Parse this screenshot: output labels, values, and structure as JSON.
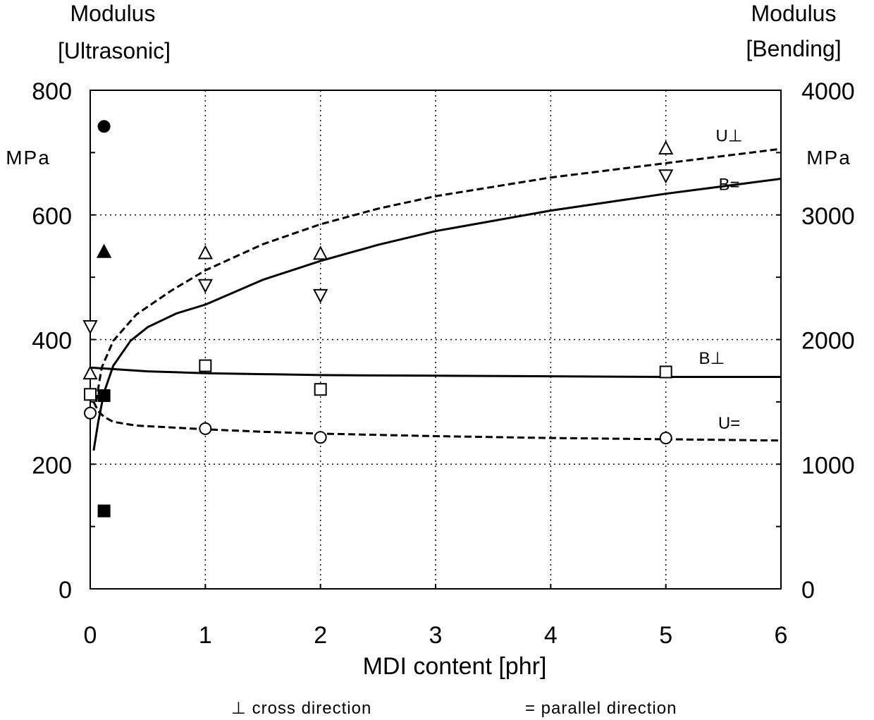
{
  "chart_data": {
    "type": "scatter",
    "xlabel": "MDI content [phr]",
    "xlim": [
      0,
      6
    ],
    "xticks": [
      "0",
      "1",
      "2",
      "3",
      "4",
      "5",
      "6"
    ],
    "left_axis": {
      "label_line1": "Modulus",
      "label_line2": "[Ultrasonic]",
      "unit": "MPa",
      "ylim": [
        0,
        800
      ],
      "ticks": [
        "0",
        "200",
        "400",
        "600",
        "800"
      ]
    },
    "right_axis": {
      "label_line1": "Modulus",
      "label_line2": "[Bending]",
      "unit": "MPa",
      "ylim": [
        0,
        4000
      ],
      "ticks": [
        "0",
        "1000",
        "2000",
        "3000",
        "4000"
      ]
    },
    "grid": true,
    "series": [
      {
        "name": "U⊥",
        "axis": "left",
        "marker": "triangle-up-open",
        "points": [
          [
            0,
            345
          ],
          [
            1,
            538
          ],
          [
            2,
            537
          ],
          [
            5,
            706
          ]
        ]
      },
      {
        "name": "U=",
        "axis": "left",
        "marker": "circle-open",
        "points": [
          [
            0,
            282
          ],
          [
            1,
            257
          ],
          [
            2,
            243
          ],
          [
            5,
            242
          ]
        ]
      },
      {
        "name": "B⊥",
        "axis": "right",
        "marker": "square-open",
        "points": [
          [
            0,
            1560
          ],
          [
            1,
            1790
          ],
          [
            2,
            1600
          ],
          [
            5,
            1740
          ]
        ]
      },
      {
        "name": "B=",
        "axis": "right",
        "marker": "triangle-down-open",
        "points": [
          [
            0,
            2110
          ],
          [
            1,
            2440
          ],
          [
            2,
            2360
          ],
          [
            5,
            3320
          ]
        ]
      },
      {
        "name": "",
        "axis": "left",
        "marker": "circle-filled",
        "points": [
          [
            0.12,
            742
          ]
        ]
      },
      {
        "name": "",
        "axis": "left",
        "marker": "triangle-up-filled",
        "points": [
          [
            0.12,
            540
          ]
        ]
      },
      {
        "name": "",
        "axis": "left",
        "marker": "square-filled",
        "points": [
          [
            0.12,
            310
          ],
          [
            0.12,
            125
          ]
        ]
      }
    ],
    "fits": [
      {
        "name": "U⊥",
        "axis": "left",
        "style": "dashed",
        "points": [
          [
            0.05,
            300
          ],
          [
            0.1,
            355
          ],
          [
            0.2,
            398
          ],
          [
            0.4,
            440
          ],
          [
            0.7,
            478
          ],
          [
            1,
            511
          ],
          [
            1.5,
            553
          ],
          [
            2,
            585
          ],
          [
            2.5,
            610
          ],
          [
            3,
            630
          ],
          [
            4,
            660
          ],
          [
            5,
            683
          ],
          [
            6,
            706
          ]
        ]
      },
      {
        "name": "B=",
        "axis": "left",
        "style": "solid",
        "points": [
          [
            0.03,
            222
          ],
          [
            0.07,
            268
          ],
          [
            0.12,
            315
          ],
          [
            0.2,
            358
          ],
          [
            0.35,
            398
          ],
          [
            0.5,
            420
          ],
          [
            0.75,
            442
          ],
          [
            1,
            456
          ],
          [
            1.5,
            496
          ],
          [
            2,
            526
          ],
          [
            2.5,
            552
          ],
          [
            3,
            574
          ],
          [
            4,
            607
          ],
          [
            5,
            634
          ],
          [
            6,
            658
          ]
        ]
      },
      {
        "name": "B⊥",
        "axis": "left",
        "style": "solid",
        "points": [
          [
            0,
            355
          ],
          [
            0.5,
            349
          ],
          [
            1,
            346
          ],
          [
            2,
            343
          ],
          [
            3,
            342
          ],
          [
            4,
            341
          ],
          [
            5,
            340
          ],
          [
            6,
            340
          ]
        ]
      },
      {
        "name": "U=",
        "axis": "left",
        "style": "dashed",
        "points": [
          [
            0.03,
            300
          ],
          [
            0.07,
            285
          ],
          [
            0.12,
            276
          ],
          [
            0.2,
            268
          ],
          [
            0.4,
            262
          ],
          [
            0.7,
            259
          ],
          [
            1,
            256
          ],
          [
            1.5,
            252
          ],
          [
            2,
            249
          ],
          [
            3,
            245
          ],
          [
            4,
            242
          ],
          [
            5,
            240
          ],
          [
            6,
            238
          ]
        ]
      }
    ],
    "curve_labels": [
      {
        "text": "U⊥",
        "x": 5.55,
        "y": 718
      },
      {
        "text": "B=",
        "x": 5.55,
        "y": 640
      },
      {
        "text": "B⊥",
        "x": 5.4,
        "y": 361
      },
      {
        "text": "U=",
        "x": 5.55,
        "y": 257
      }
    ],
    "footnotes": {
      "cross": "⊥ cross direction",
      "parallel": "= parallel direction"
    }
  }
}
